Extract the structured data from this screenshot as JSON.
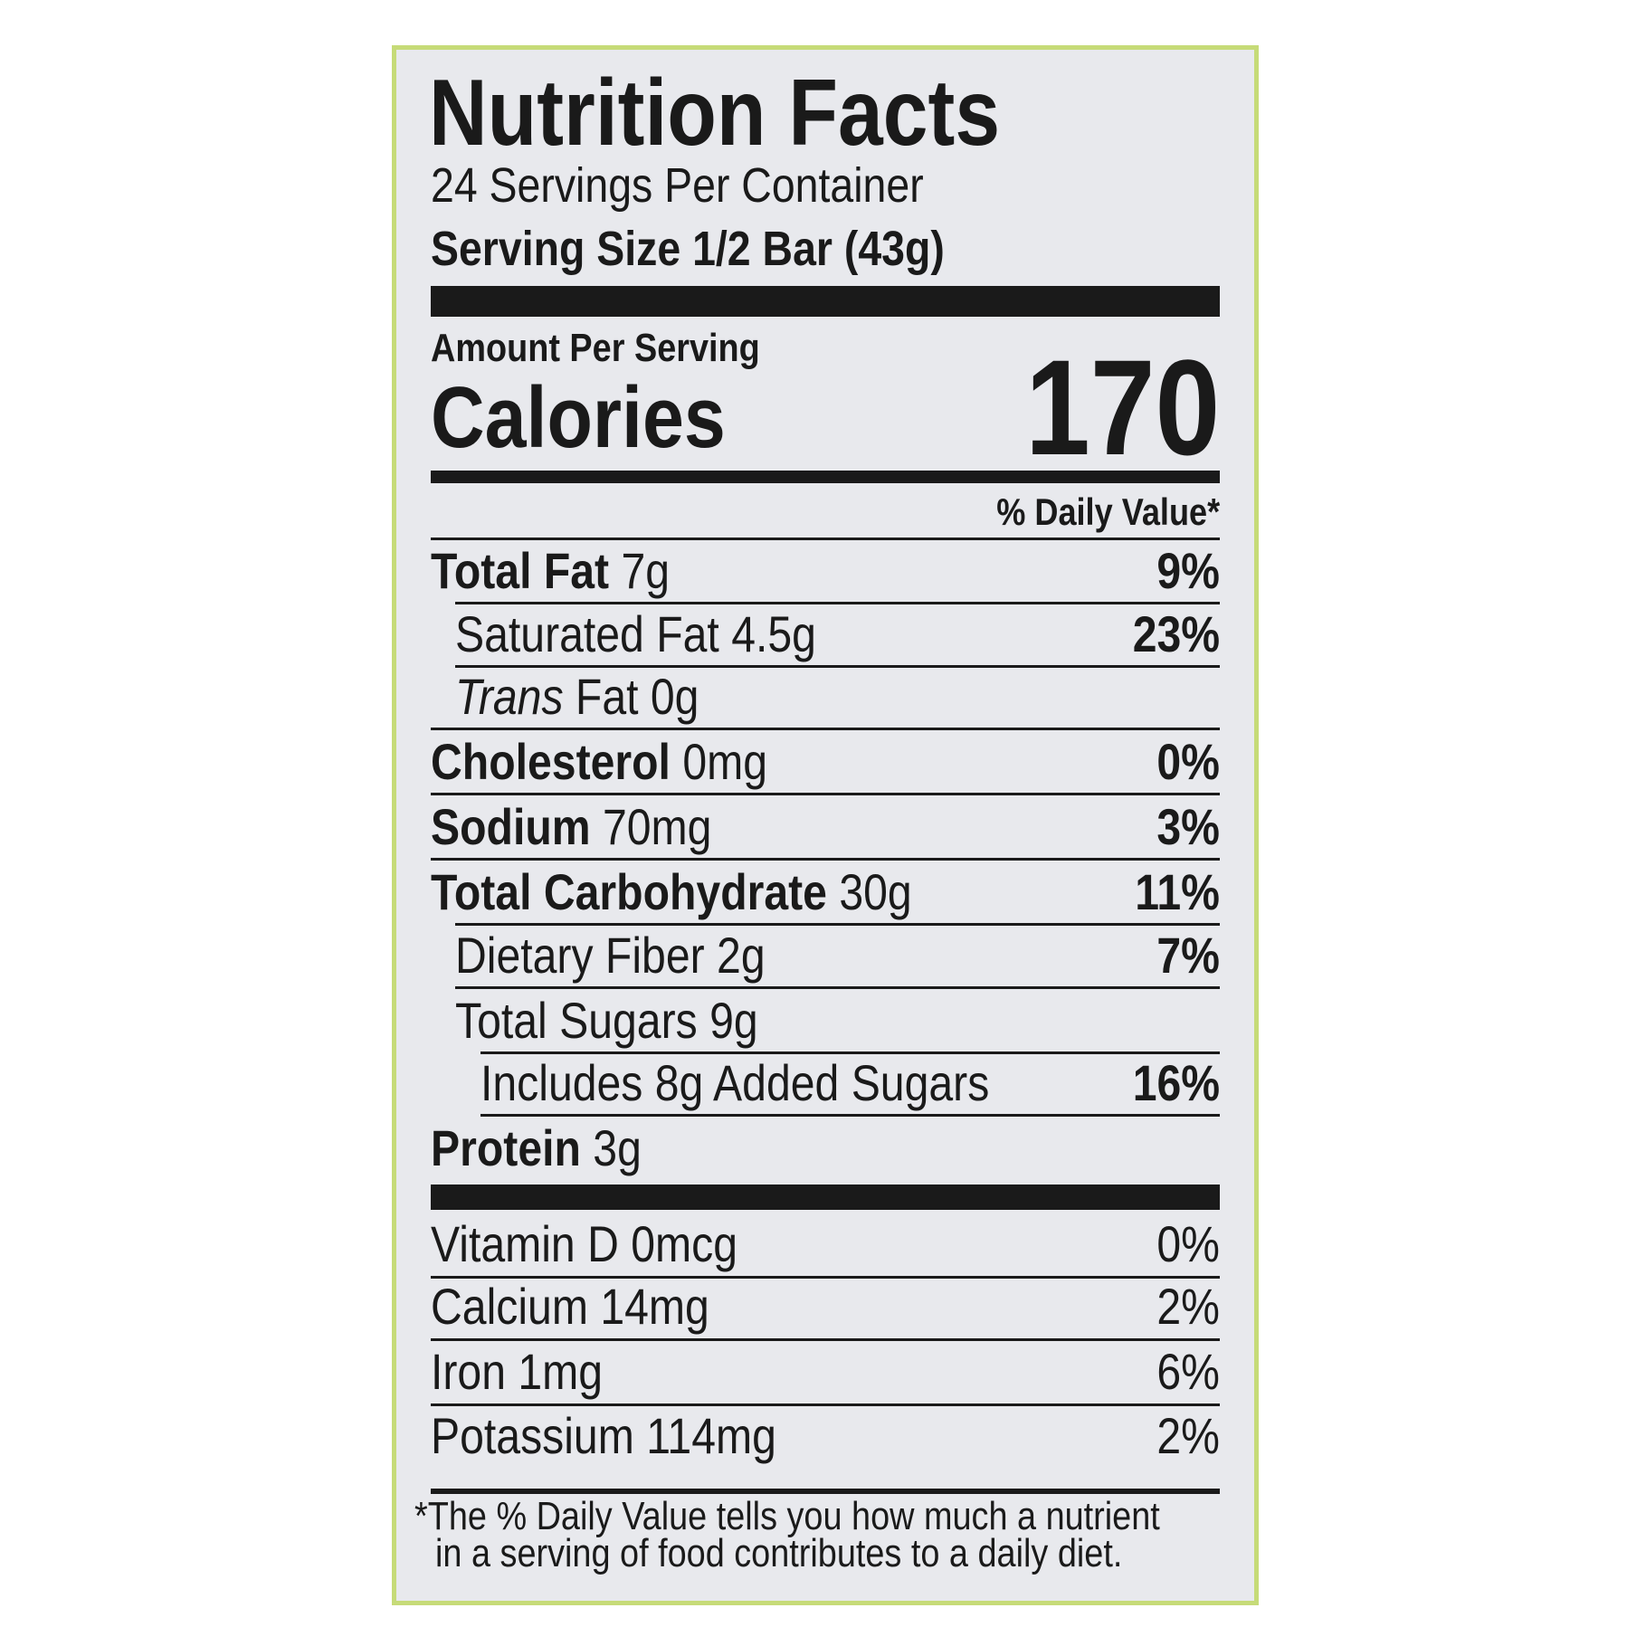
{
  "header": {
    "title": "Nutrition Facts",
    "servings": "24 Servings Per Container",
    "serving_size": "Serving Size 1/2 Bar (43g)"
  },
  "calories": {
    "amount_per_serving": "Amount Per Serving",
    "label": "Calories",
    "value": "170"
  },
  "daily_value_header": "% Daily Value*",
  "nutrients": [
    {
      "name": "Total Fat",
      "amount": "7g",
      "dv": "9%",
      "bold": true,
      "indent": 0
    },
    {
      "name": "Saturated Fat",
      "amount": "4.5g",
      "dv": "23%",
      "bold": false,
      "indent": 1
    },
    {
      "prefix": "Trans",
      "name": "Fat",
      "amount": "0g",
      "bold": false,
      "indent": 1
    },
    {
      "name": "Cholesterol",
      "amount": "0mg",
      "dv": "0%",
      "bold": true,
      "indent": 0
    },
    {
      "name": "Sodium",
      "amount": "70mg",
      "dv": "3%",
      "bold": true,
      "indent": 0
    },
    {
      "name": "Total Carbohydrate",
      "amount": "30g",
      "dv": "11%",
      "bold": true,
      "indent": 0
    },
    {
      "name": "Dietary Fiber",
      "amount": "2g",
      "dv": "7%",
      "bold": false,
      "indent": 1
    },
    {
      "name": "Total Sugars",
      "amount": "9g",
      "bold": false,
      "indent": 1
    },
    {
      "name": "Includes 8g Added Sugars",
      "dv": "16%",
      "bold": false,
      "indent": 2
    },
    {
      "name": "Protein",
      "amount": "3g",
      "bold": true,
      "indent": 0
    }
  ],
  "vitamins": [
    {
      "name": "Vitamin D",
      "amount": "0mcg",
      "dv": "0%"
    },
    {
      "name": "Calcium",
      "amount": "14mg",
      "dv": "2%"
    },
    {
      "name": "Iron",
      "amount": "1mg",
      "dv": "6%"
    },
    {
      "name": "Potassium",
      "amount": "114mg",
      "dv": "2%"
    }
  ],
  "footnote": [
    "*The % Daily Value tells you how much a nutrient",
    "in a serving of food contributes to a daily diet."
  ]
}
